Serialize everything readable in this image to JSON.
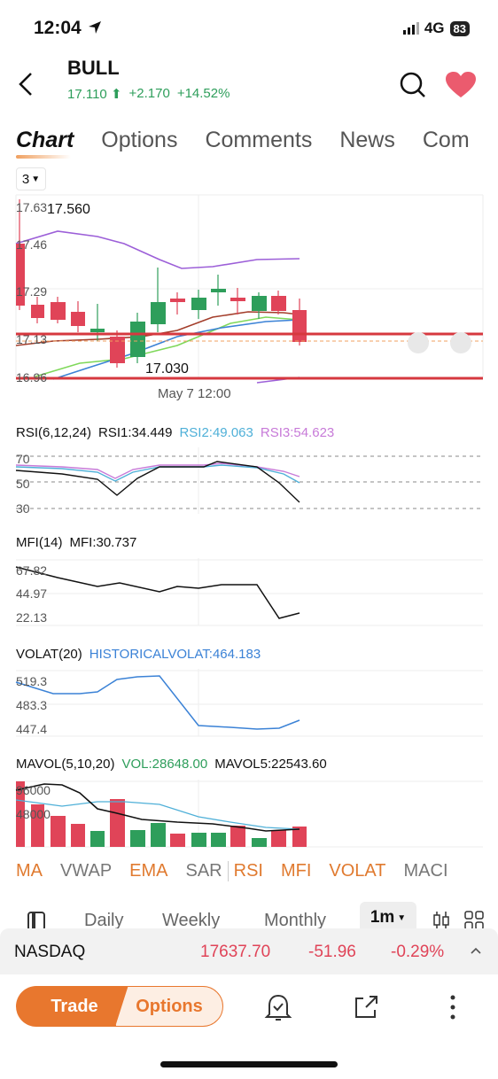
{
  "status": {
    "time": "12:04",
    "network": "4G",
    "battery": "83"
  },
  "header": {
    "ticker": "BULL",
    "price": "17.110",
    "change": "+2.170",
    "change_pct": "+14.52%"
  },
  "tabs": [
    "Chart",
    "Options",
    "Comments",
    "News",
    "Com"
  ],
  "period_select": "3",
  "main_chart": {
    "y_labels": [
      "17.63",
      "17.46",
      "17.29",
      "17.13",
      "16.96"
    ],
    "high_label": "17.560",
    "low_label": "17.030",
    "x_label": "May 7 12:00"
  },
  "rsi": {
    "title": "RSI(6,12,24)",
    "rsi1": "RSI1:34.449",
    "rsi2": "RSI2:49.063",
    "rsi3": "RSI3:54.623",
    "levels": [
      "70",
      "50",
      "30"
    ],
    "color1": "#111111",
    "color2": "#4fb0d8",
    "color3": "#c77ad8"
  },
  "mfi": {
    "title": "MFI(14)",
    "value": "MFI:30.737",
    "levels": [
      "67.82",
      "44.97",
      "22.13"
    ]
  },
  "volat": {
    "title": "VOLAT(20)",
    "value": "HISTORICALVOLAT:464.183",
    "levels": [
      "519.3",
      "483.3",
      "447.4"
    ],
    "color": "#3b82d6"
  },
  "mavol": {
    "title": "MAVOL(5,10,20)",
    "vol": "VOL:28648.00",
    "mavol5": "MAVOL5:22543.60",
    "levels": [
      "96000",
      "48000"
    ],
    "vol_color": "#2e9e5b"
  },
  "indicators": [
    {
      "label": "MA",
      "active": true
    },
    {
      "label": "VWAP",
      "active": false
    },
    {
      "label": "EMA",
      "active": true
    },
    {
      "label": "SAR",
      "active": false
    },
    {
      "label": "RSI",
      "active": true
    },
    {
      "label": "MFI",
      "active": true
    },
    {
      "label": "VOLAT",
      "active": true
    },
    {
      "label": "MACI",
      "active": false
    }
  ],
  "ranges": {
    "daily": "Daily",
    "weekly": "Weekly",
    "monthly": "Monthly",
    "selected": "1m"
  },
  "index": {
    "name": "NASDAQ",
    "value": "17637.70",
    "change": "-51.96",
    "change_pct": "-0.29%"
  },
  "footer": {
    "trade": "Trade",
    "options": "Options"
  },
  "colors": {
    "up": "#2e9e5b",
    "down": "#e04458",
    "accent": "#e8772e"
  }
}
